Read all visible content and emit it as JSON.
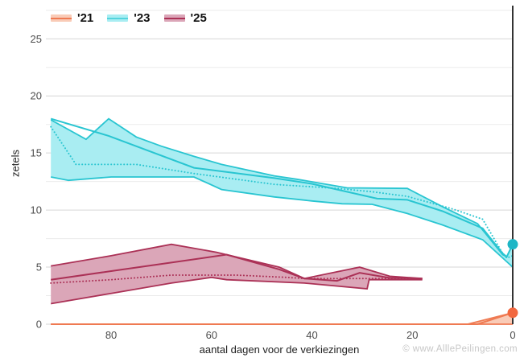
{
  "watermark": "© www.AlllePeilingen.com",
  "chart_data": {
    "type": "line",
    "title": "",
    "xlabel": "aantal dagen voor de verkiezingen",
    "ylabel": "zetels",
    "legend_position": "top-left",
    "x_axis": {
      "ticks": [
        80,
        60,
        40,
        20,
        0
      ],
      "range": [
        93,
        0
      ],
      "reversed": true
    },
    "y_axis": {
      "ticks": [
        0,
        5,
        10,
        15,
        20,
        25
      ],
      "range": [
        0,
        27.7
      ],
      "minor_step": 2.5
    },
    "grid": {
      "horizontal": true,
      "vertical": false,
      "major_color": "#d6d6d6",
      "minor_color": "#ebebeb"
    },
    "zero_line": {
      "x": 0,
      "color": "#333333"
    },
    "tick_label_color": "#4d4d4d",
    "series": [
      {
        "name": "'23",
        "line_color": "#29c5d1",
        "fill_color": "#a9edf2",
        "swatch_line_color": "#54d4dd",
        "band_upper": [
          [
            92,
            17.9
          ],
          [
            85,
            16.2
          ],
          [
            80.5,
            18.0
          ],
          [
            75,
            16.4
          ],
          [
            70,
            15.6
          ],
          [
            63.5,
            14.7
          ],
          [
            58,
            14.0
          ],
          [
            47.5,
            13.0
          ],
          [
            43,
            12.7
          ],
          [
            33,
            11.95
          ],
          [
            21,
            11.9
          ],
          [
            14,
            10.3
          ],
          [
            7,
            8.8
          ],
          [
            2,
            6.1
          ],
          [
            1.2,
            5.9
          ],
          [
            0,
            7.0
          ]
        ],
        "band_lower": [
          [
            92,
            12.9
          ],
          [
            88.5,
            12.6
          ],
          [
            80,
            12.9
          ],
          [
            63.5,
            12.9
          ],
          [
            58,
            11.8
          ],
          [
            47.5,
            11.15
          ],
          [
            40,
            10.8
          ],
          [
            34,
            10.55
          ],
          [
            28,
            10.5
          ],
          [
            21,
            9.7
          ],
          [
            14,
            8.7
          ],
          [
            6,
            7.4
          ],
          [
            1.5,
            5.6
          ],
          [
            0,
            5.0
          ]
        ],
        "mean": [
          [
            92,
            18.0
          ],
          [
            80.5,
            16.5
          ],
          [
            63.5,
            13.7
          ],
          [
            47.5,
            12.8
          ],
          [
            40,
            12.3
          ],
          [
            27,
            11.0
          ],
          [
            21,
            10.9
          ],
          [
            14,
            9.9
          ],
          [
            6,
            8.4
          ],
          [
            2,
            6.2
          ],
          [
            1.2,
            5.9
          ],
          [
            0,
            7.0
          ]
        ],
        "dotted": [
          [
            92,
            17.3
          ],
          [
            87,
            14.0
          ],
          [
            75,
            14.0
          ],
          [
            63.5,
            13.2
          ],
          [
            47.5,
            12.25
          ],
          [
            35,
            11.9
          ],
          [
            28,
            11.6
          ],
          [
            21,
            11.2
          ],
          [
            12,
            10.1
          ],
          [
            6,
            9.2
          ],
          [
            2,
            6.2
          ],
          [
            1.2,
            5.8
          ],
          [
            0,
            6.0
          ]
        ],
        "end_dot": {
          "x": 0,
          "y": 7,
          "color": "#1db6c6"
        }
      },
      {
        "name": "'25",
        "line_color": "#ab3156",
        "fill_color": "#dba6b8",
        "swatch_line_color": "#ab3156",
        "band_upper": [
          [
            92,
            5.1
          ],
          [
            80,
            6.0
          ],
          [
            68,
            7.0
          ],
          [
            59,
            6.3
          ],
          [
            46.5,
            5.0
          ],
          [
            41.5,
            4.0
          ],
          [
            30.5,
            5.0
          ],
          [
            24.5,
            4.2
          ],
          [
            18,
            4.0
          ]
        ],
        "band_lower": [
          [
            92,
            1.8
          ],
          [
            80,
            2.7
          ],
          [
            68,
            3.6
          ],
          [
            60,
            4.1
          ],
          [
            57,
            3.9
          ],
          [
            41.5,
            3.6
          ],
          [
            29,
            3.1
          ],
          [
            28.6,
            3.9
          ],
          [
            18,
            3.9
          ]
        ],
        "mean": [
          [
            92,
            3.9
          ],
          [
            80,
            4.65
          ],
          [
            68,
            5.4
          ],
          [
            57,
            6.1
          ],
          [
            46.5,
            4.8
          ],
          [
            41.5,
            4.0
          ],
          [
            35,
            3.8
          ],
          [
            30.5,
            4.5
          ],
          [
            24.5,
            4.05
          ],
          [
            18,
            4.0
          ]
        ],
        "dotted": [
          [
            92,
            3.6
          ],
          [
            80,
            3.9
          ],
          [
            68,
            4.3
          ],
          [
            55,
            4.3
          ],
          [
            45,
            4.1
          ],
          [
            41.5,
            4.0
          ],
          [
            30,
            4.0
          ],
          [
            18,
            4.0
          ]
        ],
        "end_dot": null
      },
      {
        "name": "'21",
        "line_color": "#ef7a52",
        "fill_color": "#f9cbb7",
        "swatch_line_color": "#ef7a52",
        "band_upper": [
          [
            92,
            0
          ],
          [
            9,
            0
          ],
          [
            0,
            1.0
          ]
        ],
        "band_lower": [
          [
            92,
            0
          ],
          [
            0,
            0
          ]
        ],
        "mean": [
          [
            92,
            0
          ],
          [
            7,
            0
          ],
          [
            0,
            1.0
          ]
        ],
        "dotted": null,
        "end_dot": {
          "x": 0,
          "y": 1,
          "color": "#f2683f"
        }
      }
    ]
  }
}
